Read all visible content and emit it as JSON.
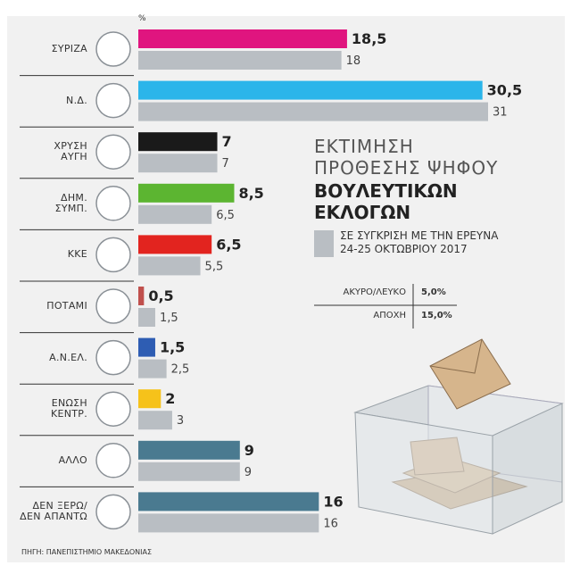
{
  "chart_data": {
    "type": "bar",
    "title": "ΕΚΤΙΜΗΣΗ\nΠΡΟΘΕΣΗΣ ΨΗΦΟΥ",
    "title_emphasis": "ΒΟΥΛΕΥΤΙΚΩΝ\nΕΚΛΟΓΩΝ",
    "unit_label": "%",
    "source": "ΠΗΓΗ: ΠΑΝΕΠΙΣΤΗΜΙΟ ΜΑΚΕΔΟΝΙΑΣ",
    "categories": [
      "ΣΥΡΙΖΑ",
      "Ν.Δ.",
      "ΧΡΥΣΗ\nΑΥΓΗ",
      "ΔΗΜ.\nΣΥΜΠ.",
      "ΚΚΕ",
      "ΠΟΤΑΜΙ",
      "Α.Ν.ΕΛ.",
      "ΕΝΩΣΗ\nΚΕΝΤΡ.",
      "ΑΛΛΟ",
      "ΔΕΝ ΞΕΡΩ/\nΔΕΝ ΑΠΑΝΤΩ"
    ],
    "series": [
      {
        "colors": [
          "#e0157f",
          "#2bb5ea",
          "#1a1a1a",
          "#5cb531",
          "#e2241f",
          "#c0504d",
          "#2e5db3",
          "#f6c21a",
          "#4a7a90",
          "#4a7a90"
        ],
        "values": [
          18.5,
          30.5,
          7,
          8.5,
          6.5,
          0.5,
          1.5,
          2,
          9,
          16
        ],
        "value_labels": [
          "18,5",
          "30,5",
          "7",
          "8,5",
          "6,5",
          "0,5",
          "1,5",
          "2",
          "9",
          "16"
        ]
      },
      {
        "name": "ΣΕ ΣΥΓΚΡΙΣΗ ΜΕ ΤΗΝ ΕΡΕΥΝΑ\n24-25 ΟΚΤΩΒΡΙΟΥ 2017",
        "color": "#b9bec3",
        "values": [
          18,
          31,
          7,
          6.5,
          5.5,
          1.5,
          2.5,
          3,
          9,
          16
        ],
        "value_labels": [
          "18",
          "31",
          "7",
          "6,5",
          "5,5",
          "1,5",
          "2,5",
          "3",
          "9",
          "16"
        ]
      }
    ],
    "side_table": [
      [
        "ΑΚΥΡΟ/ΛΕΥΚΟ",
        "5,0%"
      ],
      [
        "ΑΠΟΧΗ",
        "15,0%"
      ]
    ]
  }
}
